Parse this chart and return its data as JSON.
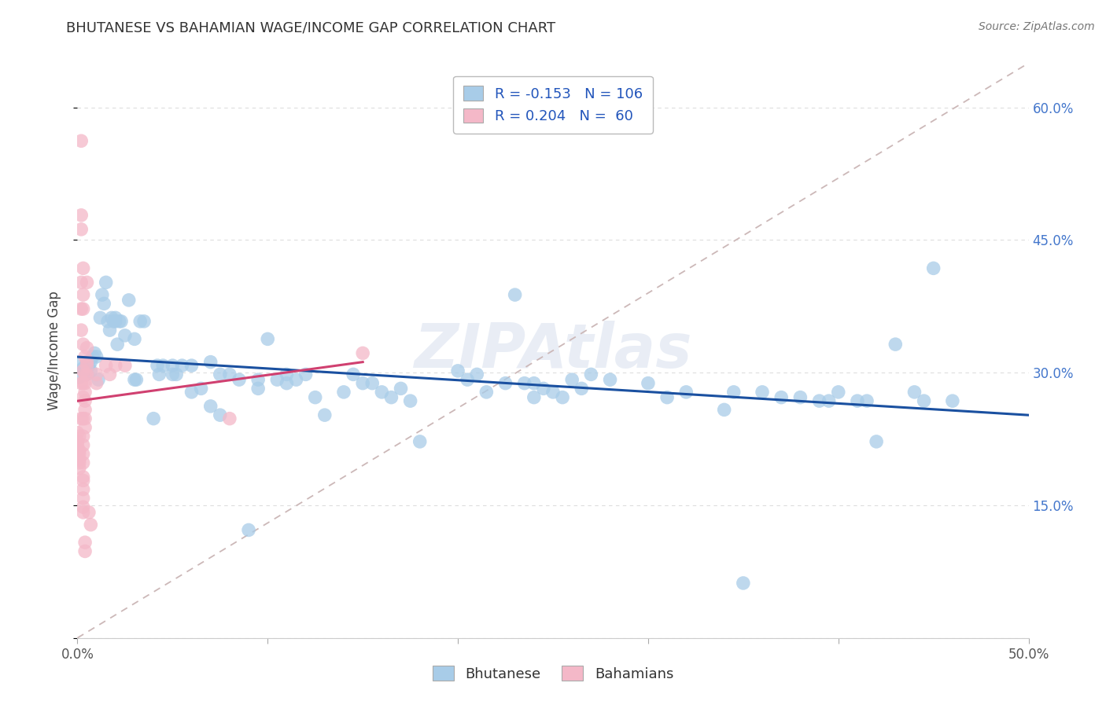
{
  "title": "BHUTANESE VS BAHAMIAN WAGE/INCOME GAP CORRELATION CHART",
  "source": "Source: ZipAtlas.com",
  "ylabel": "Wage/Income Gap",
  "xlim": [
    0.0,
    0.5
  ],
  "ylim": [
    0.0,
    0.65
  ],
  "xtick_positions": [
    0.0,
    0.1,
    0.2,
    0.3,
    0.4,
    0.5
  ],
  "xtick_labels": [
    "0.0%",
    "",
    "",
    "",
    "",
    "50.0%"
  ],
  "ytick_positions": [
    0.0,
    0.15,
    0.3,
    0.45,
    0.6
  ],
  "ytick_labels_right": [
    "",
    "15.0%",
    "30.0%",
    "45.0%",
    "60.0%"
  ],
  "blue_R": "-0.153",
  "blue_N": "106",
  "pink_R": "0.204",
  "pink_N": "60",
  "blue_color": "#a8cce8",
  "pink_color": "#f4b8c8",
  "blue_line_color": "#1a50a0",
  "pink_line_color": "#d04070",
  "diag_color": "#ccb8b8",
  "grid_color": "#dddddd",
  "watermark": "ZIPAtlas",
  "blue_points": [
    [
      0.001,
      0.295
    ],
    [
      0.002,
      0.31
    ],
    [
      0.003,
      0.305
    ],
    [
      0.004,
      0.298
    ],
    [
      0.005,
      0.312
    ],
    [
      0.005,
      0.298
    ],
    [
      0.006,
      0.308
    ],
    [
      0.007,
      0.302
    ],
    [
      0.007,
      0.312
    ],
    [
      0.008,
      0.318
    ],
    [
      0.009,
      0.322
    ],
    [
      0.01,
      0.318
    ],
    [
      0.011,
      0.292
    ],
    [
      0.012,
      0.362
    ],
    [
      0.013,
      0.388
    ],
    [
      0.014,
      0.378
    ],
    [
      0.015,
      0.402
    ],
    [
      0.016,
      0.358
    ],
    [
      0.017,
      0.348
    ],
    [
      0.018,
      0.362
    ],
    [
      0.019,
      0.358
    ],
    [
      0.02,
      0.362
    ],
    [
      0.02,
      0.358
    ],
    [
      0.021,
      0.332
    ],
    [
      0.022,
      0.358
    ],
    [
      0.023,
      0.358
    ],
    [
      0.025,
      0.342
    ],
    [
      0.027,
      0.382
    ],
    [
      0.03,
      0.338
    ],
    [
      0.03,
      0.292
    ],
    [
      0.031,
      0.292
    ],
    [
      0.033,
      0.358
    ],
    [
      0.035,
      0.358
    ],
    [
      0.04,
      0.248
    ],
    [
      0.042,
      0.308
    ],
    [
      0.043,
      0.298
    ],
    [
      0.045,
      0.308
    ],
    [
      0.05,
      0.308
    ],
    [
      0.05,
      0.298
    ],
    [
      0.052,
      0.298
    ],
    [
      0.055,
      0.308
    ],
    [
      0.06,
      0.308
    ],
    [
      0.06,
      0.278
    ],
    [
      0.065,
      0.282
    ],
    [
      0.07,
      0.312
    ],
    [
      0.07,
      0.262
    ],
    [
      0.075,
      0.252
    ],
    [
      0.075,
      0.298
    ],
    [
      0.08,
      0.298
    ],
    [
      0.085,
      0.292
    ],
    [
      0.09,
      0.122
    ],
    [
      0.095,
      0.292
    ],
    [
      0.095,
      0.282
    ],
    [
      0.1,
      0.338
    ],
    [
      0.105,
      0.292
    ],
    [
      0.11,
      0.298
    ],
    [
      0.11,
      0.288
    ],
    [
      0.115,
      0.292
    ],
    [
      0.12,
      0.298
    ],
    [
      0.125,
      0.272
    ],
    [
      0.13,
      0.252
    ],
    [
      0.14,
      0.278
    ],
    [
      0.145,
      0.298
    ],
    [
      0.15,
      0.288
    ],
    [
      0.155,
      0.288
    ],
    [
      0.16,
      0.278
    ],
    [
      0.165,
      0.272
    ],
    [
      0.17,
      0.282
    ],
    [
      0.175,
      0.268
    ],
    [
      0.18,
      0.222
    ],
    [
      0.2,
      0.302
    ],
    [
      0.205,
      0.292
    ],
    [
      0.21,
      0.298
    ],
    [
      0.215,
      0.278
    ],
    [
      0.225,
      0.288
    ],
    [
      0.23,
      0.388
    ],
    [
      0.235,
      0.288
    ],
    [
      0.24,
      0.272
    ],
    [
      0.24,
      0.288
    ],
    [
      0.245,
      0.282
    ],
    [
      0.25,
      0.278
    ],
    [
      0.255,
      0.272
    ],
    [
      0.26,
      0.292
    ],
    [
      0.265,
      0.282
    ],
    [
      0.27,
      0.298
    ],
    [
      0.28,
      0.292
    ],
    [
      0.3,
      0.288
    ],
    [
      0.31,
      0.272
    ],
    [
      0.32,
      0.278
    ],
    [
      0.34,
      0.258
    ],
    [
      0.345,
      0.278
    ],
    [
      0.35,
      0.062
    ],
    [
      0.36,
      0.278
    ],
    [
      0.37,
      0.272
    ],
    [
      0.38,
      0.272
    ],
    [
      0.39,
      0.268
    ],
    [
      0.395,
      0.268
    ],
    [
      0.4,
      0.278
    ],
    [
      0.41,
      0.268
    ],
    [
      0.415,
      0.268
    ],
    [
      0.42,
      0.222
    ],
    [
      0.43,
      0.332
    ],
    [
      0.44,
      0.278
    ],
    [
      0.445,
      0.268
    ],
    [
      0.45,
      0.418
    ],
    [
      0.46,
      0.268
    ]
  ],
  "pink_points": [
    [
      0.0,
      0.232
    ],
    [
      0.0,
      0.222
    ],
    [
      0.0,
      0.218
    ],
    [
      0.001,
      0.228
    ],
    [
      0.001,
      0.212
    ],
    [
      0.001,
      0.208
    ],
    [
      0.001,
      0.202
    ],
    [
      0.001,
      0.198
    ],
    [
      0.001,
      0.192
    ],
    [
      0.002,
      0.562
    ],
    [
      0.002,
      0.478
    ],
    [
      0.002,
      0.462
    ],
    [
      0.002,
      0.402
    ],
    [
      0.002,
      0.372
    ],
    [
      0.002,
      0.348
    ],
    [
      0.002,
      0.288
    ],
    [
      0.002,
      0.248
    ],
    [
      0.003,
      0.418
    ],
    [
      0.003,
      0.388
    ],
    [
      0.003,
      0.372
    ],
    [
      0.003,
      0.332
    ],
    [
      0.003,
      0.302
    ],
    [
      0.003,
      0.288
    ],
    [
      0.003,
      0.272
    ],
    [
      0.003,
      0.248
    ],
    [
      0.003,
      0.228
    ],
    [
      0.003,
      0.218
    ],
    [
      0.003,
      0.208
    ],
    [
      0.003,
      0.198
    ],
    [
      0.003,
      0.182
    ],
    [
      0.003,
      0.178
    ],
    [
      0.003,
      0.168
    ],
    [
      0.003,
      0.158
    ],
    [
      0.003,
      0.148
    ],
    [
      0.003,
      0.142
    ],
    [
      0.004,
      0.318
    ],
    [
      0.004,
      0.298
    ],
    [
      0.004,
      0.288
    ],
    [
      0.004,
      0.278
    ],
    [
      0.004,
      0.268
    ],
    [
      0.004,
      0.258
    ],
    [
      0.004,
      0.248
    ],
    [
      0.004,
      0.238
    ],
    [
      0.004,
      0.108
    ],
    [
      0.004,
      0.098
    ],
    [
      0.005,
      0.402
    ],
    [
      0.005,
      0.328
    ],
    [
      0.005,
      0.312
    ],
    [
      0.005,
      0.308
    ],
    [
      0.005,
      0.298
    ],
    [
      0.006,
      0.142
    ],
    [
      0.007,
      0.128
    ],
    [
      0.01,
      0.298
    ],
    [
      0.01,
      0.288
    ],
    [
      0.015,
      0.308
    ],
    [
      0.017,
      0.298
    ],
    [
      0.02,
      0.308
    ],
    [
      0.025,
      0.308
    ],
    [
      0.08,
      0.248
    ],
    [
      0.15,
      0.322
    ]
  ]
}
